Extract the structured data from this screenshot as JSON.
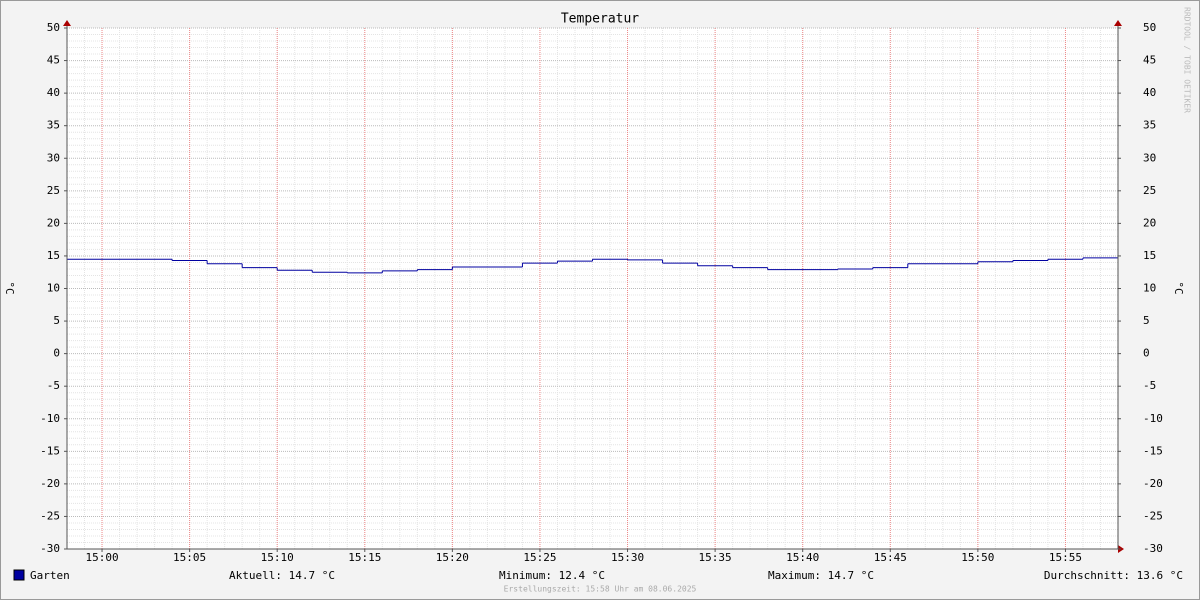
{
  "chart_data": {
    "type": "line",
    "step": true,
    "title": "Temperatur",
    "ylabel": "°C",
    "y2label": "°C",
    "watermark": "RRDTOOL / TOBI OETIKER",
    "footer": "Erstellungszeit: 15:58 Uhr am 08.06.2025",
    "x": [
      "14:58",
      "15:04",
      "15:06",
      "15:08",
      "15:10",
      "15:12",
      "15:14",
      "15:16",
      "15:18",
      "15:20",
      "15:24",
      "15:26",
      "15:28",
      "15:30",
      "15:32",
      "15:34",
      "15:36",
      "15:38",
      "15:42",
      "15:44",
      "15:46",
      "15:50",
      "15:52",
      "15:54",
      "15:56"
    ],
    "series": [
      {
        "name": "Garten",
        "color": "#0000a0",
        "values": [
          14.5,
          14.3,
          13.8,
          13.2,
          12.8,
          12.5,
          12.4,
          12.7,
          12.9,
          13.3,
          13.9,
          14.2,
          14.5,
          14.4,
          13.9,
          13.5,
          13.2,
          12.9,
          13.0,
          13.2,
          13.8,
          14.1,
          14.3,
          14.5,
          14.7
        ]
      }
    ],
    "xlim": [
      "14:58",
      "15:58"
    ],
    "xticks": [
      "15:00",
      "15:05",
      "15:10",
      "15:15",
      "15:20",
      "15:25",
      "15:30",
      "15:35",
      "15:40",
      "15:45",
      "15:50",
      "15:55"
    ],
    "ylim": [
      -30,
      50
    ],
    "yticks": [
      -30,
      -25,
      -20,
      -15,
      -10,
      -5,
      0,
      5,
      10,
      15,
      20,
      25,
      30,
      35,
      40,
      45,
      50
    ],
    "y2lim": [
      -30,
      50
    ],
    "y2ticks": [
      -30,
      -25,
      -20,
      -15,
      -10,
      -5,
      0,
      5,
      10,
      15,
      20,
      25,
      30,
      35,
      40,
      45,
      50
    ],
    "grid": true,
    "legend_stats": [
      "Aktuell: 14.7 °C",
      "Minimum: 12.4 °C",
      "Maximum: 14.7 °C",
      "Durchschnitt: 13.6 °C"
    ]
  }
}
